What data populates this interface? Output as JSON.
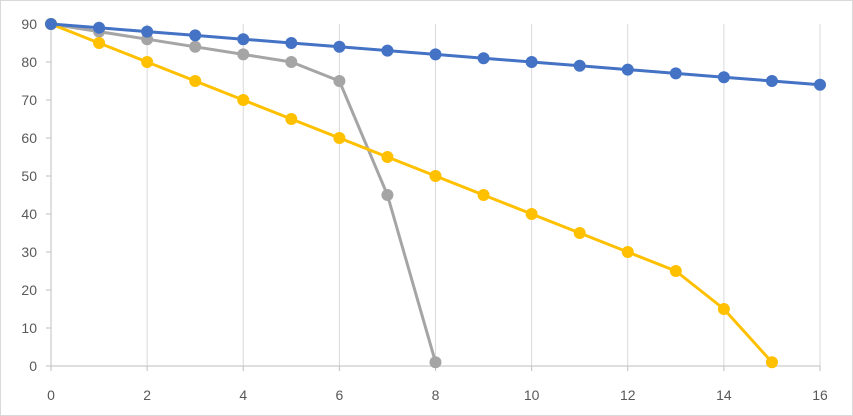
{
  "chart_data": {
    "type": "line",
    "title": "",
    "xlabel": "",
    "ylabel": "",
    "xlim": [
      0,
      16
    ],
    "ylim": [
      0,
      90
    ],
    "x_ticks": [
      0,
      2,
      4,
      6,
      8,
      10,
      12,
      14,
      16
    ],
    "y_ticks": [
      0,
      10,
      20,
      30,
      40,
      50,
      60,
      70,
      80,
      90
    ],
    "grid": "vertical",
    "legend": "none",
    "series": [
      {
        "color": "#4472C4",
        "x": [
          0,
          1,
          2,
          3,
          4,
          5,
          6,
          7,
          8,
          9,
          10,
          11,
          12,
          13,
          14,
          15,
          16
        ],
        "y": [
          90,
          89,
          88,
          87,
          86,
          85,
          84,
          83,
          82,
          81,
          80,
          79,
          78,
          77,
          76,
          75,
          74
        ]
      },
      {
        "color": "#A5A5A5",
        "x": [
          0,
          1,
          2,
          3,
          4,
          5,
          6,
          7,
          8
        ],
        "y": [
          90,
          88,
          86,
          84,
          82,
          80,
          75,
          45,
          1
        ]
      },
      {
        "color": "#FFC000",
        "x": [
          0,
          1,
          2,
          3,
          4,
          5,
          6,
          7,
          8,
          9,
          10,
          11,
          12,
          13,
          14,
          15
        ],
        "y": [
          90,
          85,
          80,
          75,
          70,
          65,
          60,
          55,
          50,
          45,
          40,
          35,
          30,
          25,
          15,
          1
        ]
      }
    ]
  }
}
